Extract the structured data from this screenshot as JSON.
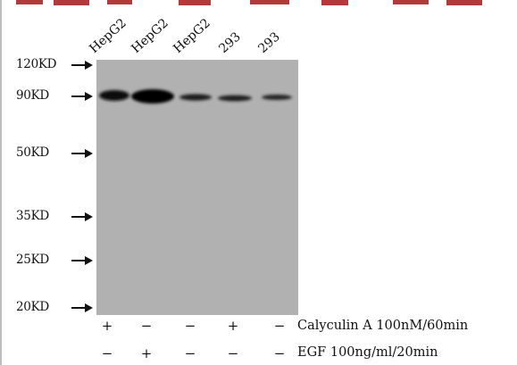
{
  "lanes": [
    "HepG2",
    "HepG2",
    "HepG2",
    "293",
    "293"
  ],
  "markers": [
    "120KD",
    "90KD",
    "50KD",
    "35KD",
    "25KD",
    "20KD"
  ],
  "treatments": [
    {
      "label": "Calyculin A 100nM/60min",
      "signs": [
        "+",
        "−",
        "−",
        "+",
        "−"
      ]
    },
    {
      "label": "EGF 100ng/ml/20min",
      "signs": [
        "−",
        "+",
        "−",
        "−",
        "−"
      ]
    }
  ],
  "colors": {
    "membrane": "#b1b1b1",
    "band": "#0d0d0d",
    "header_strip": "#b23a3a"
  },
  "bands": [
    {
      "lane": 1,
      "intensity": 0.92
    },
    {
      "lane": 2,
      "intensity": 1.0
    },
    {
      "lane": 3,
      "intensity": 0.55
    },
    {
      "lane": 4,
      "intensity": 0.5
    },
    {
      "lane": 5,
      "intensity": 0.45
    }
  ]
}
